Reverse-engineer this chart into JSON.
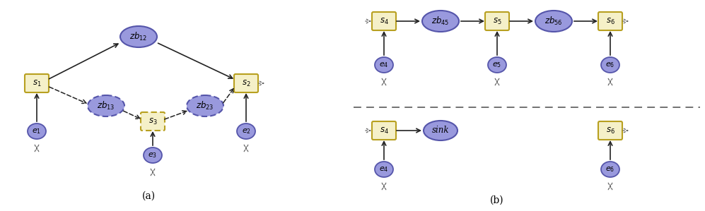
{
  "fig_width": 9.97,
  "fig_height": 2.99,
  "dpi": 100,
  "bg_color": "#ffffff",
  "sensor_fill": "#f5f0c8",
  "sensor_edge": "#b8a020",
  "zb_fill": "#9999dd",
  "zb_edge": "#5555aa",
  "event_fill": "#9999dd",
  "event_edge": "#5555aa",
  "arrow_color": "#222222",
  "dot_color": "#666666",
  "label_a": "(a)",
  "label_b": "(b)"
}
